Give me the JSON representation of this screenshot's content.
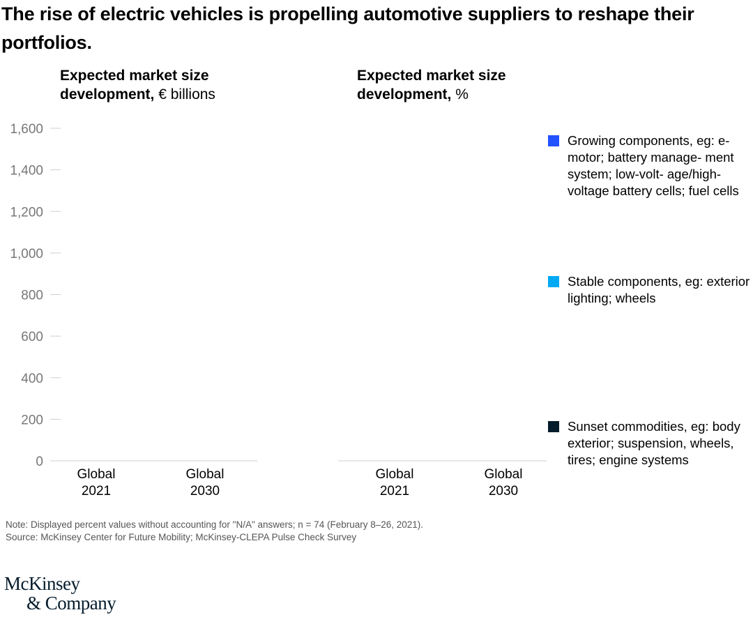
{
  "title": "The rise of electric vehicles is propelling automotive suppliers to reshape their portfolios.",
  "left_subtitle": {
    "bold": "Expected market size development,",
    "unit": " € billions"
  },
  "right_subtitle": {
    "bold": "Expected market size development,",
    "unit": " %"
  },
  "legend": [
    {
      "name": "Growing components,",
      "desc": " eg: e-motor; battery manage- ment system; low-volt- age/high-voltage battery cells; fuel cells",
      "color": "#2251ff"
    },
    {
      "name": "Stable components,",
      "desc": " eg: exterior lighting; wheels",
      "color": "#00a9f4"
    },
    {
      "name": "Sunset commodities,",
      "desc": " eg: body exterior; suspension, wheels, tires; engine systems",
      "color": "#051c2c"
    }
  ],
  "note": "Note: Displayed percent values without accounting for \"N/A\" answers; n = 74 (February 8–26, 2021).",
  "source": "Source: McKinsey Center for Future Mobility; McKinsey-CLEPA Pulse Check Survey",
  "logo": {
    "line1": "McKinsey",
    "line2": "& Company"
  },
  "chart_data": [
    {
      "type": "bar",
      "title": "Expected market size development, € billions",
      "categories": [
        "Global 2021",
        "Global 2030"
      ],
      "category_lines": [
        [
          "Global",
          "2021"
        ],
        [
          "Global",
          "2030"
        ]
      ],
      "ylim": [
        0,
        1600
      ],
      "yticks": [
        0,
        200,
        400,
        600,
        800,
        1000,
        1200,
        1400,
        1600
      ],
      "ytick_labels": [
        "0",
        "200",
        "400",
        "600",
        "800",
        "1,000",
        "1,200",
        "1,400",
        "1,600"
      ],
      "series": []
    },
    {
      "type": "bar",
      "title": "Expected market size development, %",
      "categories": [
        "Global 2021",
        "Global 2030"
      ],
      "category_lines": [
        [
          "Global",
          "2021"
        ],
        [
          "Global",
          "2030"
        ]
      ],
      "series": []
    }
  ]
}
